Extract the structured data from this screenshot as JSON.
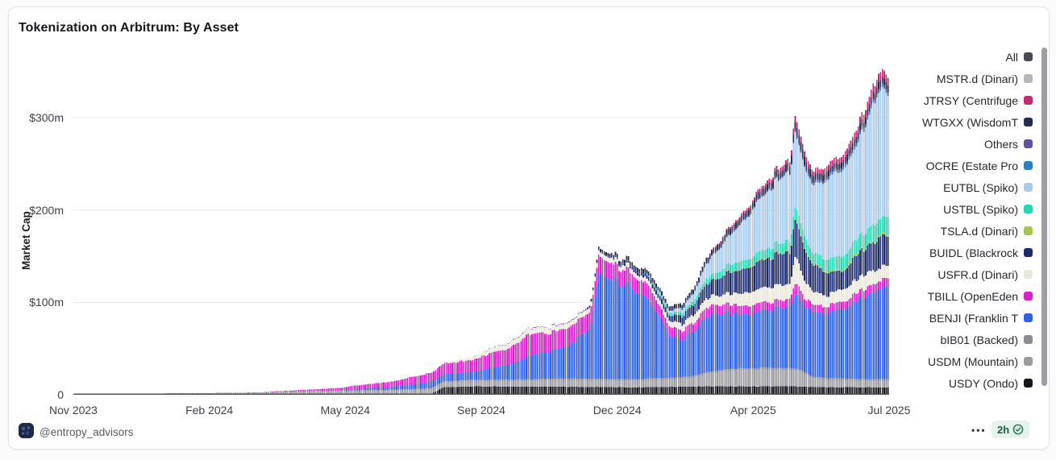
{
  "footer": {
    "handle": "@entropy_advisors",
    "menu_dots": "•••",
    "time": "2h"
  },
  "chart_data": {
    "type": "bar",
    "stacked": true,
    "title": "Tokenization on Arbitrum: By Asset",
    "ylabel": "Market Cap",
    "unit": "USD millions",
    "x_start": "Nov 2023",
    "x_end": "Jul 2025",
    "months_span": 20.5,
    "bars": 440,
    "grid": true,
    "legend_position": "right",
    "ylim": [
      0,
      378
    ],
    "y_ticks": [
      {
        "label": "$300m",
        "value": 300
      },
      {
        "label": "$200m",
        "value": 200
      },
      {
        "label": "$100m",
        "value": 100
      },
      {
        "label": "0",
        "value": 0
      }
    ],
    "x_ticks": [
      "Nov 2023",
      "Feb 2024",
      "May 2024",
      "Sep 2024",
      "Dec 2024",
      "Apr 2025",
      "Jul 2025"
    ],
    "legend": [
      {
        "label": "All",
        "color": "#4a4a54"
      },
      {
        "label": "MSTR.d (Dinari)",
        "color": "#b5b5ba"
      },
      {
        "label": "JTRSY (Centrifuge",
        "color": "#c42a72"
      },
      {
        "label": "WTGXX (WisdomT",
        "color": "#232c4e"
      },
      {
        "label": "Others",
        "color": "#6550a2"
      },
      {
        "label": "OCRE (Estate Pro",
        "color": "#2e7fc2"
      },
      {
        "label": "EUTBL (Spiko)",
        "color": "#a9ccee"
      },
      {
        "label": "USTBL (Spiko)",
        "color": "#2ed4b2"
      },
      {
        "label": "TSLA.d (Dinari)",
        "color": "#a3c64d"
      },
      {
        "label": "BUIDL (Blackrock",
        "color": "#1d2a6e"
      },
      {
        "label": "USFR.d (Dinari)",
        "color": "#e9e7dc"
      },
      {
        "label": "TBILL (OpenEden",
        "color": "#d722c8"
      },
      {
        "label": "BENJI (Franklin T",
        "color": "#2e5fe8"
      },
      {
        "label": "bIB01 (Backed)",
        "color": "#8b8b92"
      },
      {
        "label": "USDM (Mountain)",
        "color": "#9b9ba1"
      },
      {
        "label": "USDY (Ondo)",
        "color": "#14141c"
      }
    ],
    "series": [
      {
        "name": "USDY (Ondo)",
        "color": "#14141c",
        "noise": 0.04,
        "keyframes": [
          [
            0,
            0.4
          ],
          [
            8,
            0.6
          ],
          [
            9,
            0.8
          ],
          [
            9.3,
            8
          ],
          [
            10,
            9
          ],
          [
            13,
            8.5
          ],
          [
            14,
            8
          ],
          [
            16,
            9
          ],
          [
            18,
            9
          ],
          [
            19,
            8
          ],
          [
            20.5,
            8
          ]
        ]
      },
      {
        "name": "USDM (Mountain)",
        "color": "#9b9ba1",
        "noise": 0.05,
        "keyframes": [
          [
            0,
            0.5
          ],
          [
            3,
            0.8
          ],
          [
            4.5,
            1.5
          ],
          [
            6,
            3
          ],
          [
            7,
            3.5
          ],
          [
            8,
            4
          ],
          [
            9,
            5
          ],
          [
            10,
            6
          ],
          [
            11,
            6
          ],
          [
            12,
            7
          ],
          [
            13,
            7
          ],
          [
            14,
            7
          ],
          [
            15,
            8
          ],
          [
            15.5,
            9
          ],
          [
            16,
            14
          ],
          [
            16.5,
            17
          ],
          [
            17,
            18
          ],
          [
            18,
            18
          ],
          [
            18.3,
            16
          ],
          [
            18.6,
            9
          ],
          [
            19,
            8
          ],
          [
            20,
            7
          ],
          [
            20.5,
            7
          ]
        ]
      },
      {
        "name": "bIB01 (Backed)",
        "color": "#8b8b92",
        "noise": 0.05,
        "keyframes": [
          [
            0,
            0.2
          ],
          [
            5,
            0.5
          ],
          [
            8,
            1
          ],
          [
            10,
            1.5
          ],
          [
            14,
            2
          ],
          [
            20.5,
            2
          ]
        ]
      },
      {
        "name": "BENJI (Franklin T",
        "color": "#2e5fe8",
        "noise": 0.08,
        "keyframes": [
          [
            0,
            0
          ],
          [
            6.8,
            0
          ],
          [
            7,
            1
          ],
          [
            8,
            2.5
          ],
          [
            9,
            7
          ],
          [
            10,
            8
          ],
          [
            10.4,
            12
          ],
          [
            11,
            16
          ],
          [
            11.5,
            26
          ],
          [
            12,
            30
          ],
          [
            12.4,
            34
          ],
          [
            12.7,
            44
          ],
          [
            13,
            52
          ],
          [
            13.1,
            80
          ],
          [
            13.2,
            118
          ],
          [
            13.5,
            112
          ],
          [
            13.7,
            103
          ],
          [
            14,
            100
          ],
          [
            14.3,
            92
          ],
          [
            14.6,
            75
          ],
          [
            14.8,
            60
          ],
          [
            15,
            46
          ],
          [
            15.3,
            40
          ],
          [
            15.6,
            48
          ],
          [
            16,
            62
          ],
          [
            16.5,
            60
          ],
          [
            17,
            58
          ],
          [
            17.5,
            62
          ],
          [
            18,
            68
          ],
          [
            18.15,
            80
          ],
          [
            18.35,
            72
          ],
          [
            18.6,
            68
          ],
          [
            19,
            72
          ],
          [
            19.5,
            78
          ],
          [
            20,
            92
          ],
          [
            20.2,
            98
          ],
          [
            20.5,
            97
          ]
        ]
      },
      {
        "name": "TBILL (OpenEden",
        "color": "#d722c8",
        "noise": 0.12,
        "keyframes": [
          [
            0,
            0
          ],
          [
            4.8,
            0
          ],
          [
            5,
            0.5
          ],
          [
            6,
            1.5
          ],
          [
            7,
            3.5
          ],
          [
            8,
            6
          ],
          [
            9,
            10
          ],
          [
            9.5,
            12
          ],
          [
            10,
            13
          ],
          [
            10.5,
            16
          ],
          [
            11,
            18
          ],
          [
            11.5,
            24
          ],
          [
            12,
            20
          ],
          [
            13,
            18
          ],
          [
            13.5,
            17
          ],
          [
            14,
            16
          ],
          [
            14.5,
            14
          ],
          [
            15,
            10
          ],
          [
            16,
            10
          ],
          [
            17,
            9
          ],
          [
            18,
            8
          ],
          [
            18.15,
            12
          ],
          [
            18.35,
            9
          ],
          [
            19,
            8
          ],
          [
            20,
            9
          ],
          [
            20.5,
            10
          ]
        ]
      },
      {
        "name": "USFR.d (Dinari)",
        "color": "#ebe8da",
        "noise": 0.14,
        "keyframes": [
          [
            0,
            0
          ],
          [
            9,
            0
          ],
          [
            9.5,
            2
          ],
          [
            10,
            3
          ],
          [
            10.5,
            5
          ],
          [
            11,
            6
          ],
          [
            12,
            6
          ],
          [
            13,
            5
          ],
          [
            14,
            5
          ],
          [
            15,
            6
          ],
          [
            15.5,
            8
          ],
          [
            16,
            10
          ],
          [
            16.5,
            12
          ],
          [
            17,
            14
          ],
          [
            17.5,
            16
          ],
          [
            18,
            16
          ],
          [
            18.15,
            28
          ],
          [
            18.4,
            18
          ],
          [
            18.6,
            14
          ],
          [
            19,
            12
          ],
          [
            19.5,
            14
          ],
          [
            20,
            15
          ],
          [
            20.5,
            14
          ]
        ]
      },
      {
        "name": "BUIDL (Blackrock",
        "color": "#1d2a6e",
        "noise": 0.14,
        "keyframes": [
          [
            0,
            0
          ],
          [
            13.5,
            0
          ],
          [
            14,
            2
          ],
          [
            14.5,
            4
          ],
          [
            15,
            6
          ],
          [
            15.5,
            10
          ],
          [
            16,
            16
          ],
          [
            16.5,
            22
          ],
          [
            17,
            28
          ],
          [
            17.5,
            32
          ],
          [
            18,
            34
          ],
          [
            18.15,
            38
          ],
          [
            18.5,
            30
          ],
          [
            19,
            24
          ],
          [
            19.3,
            20
          ],
          [
            19.7,
            26
          ],
          [
            20,
            30
          ],
          [
            20.3,
            34
          ],
          [
            20.5,
            33
          ]
        ]
      },
      {
        "name": "TSLA.d (Dinari)",
        "color": "#a3c64d",
        "noise": 0.1,
        "keyframes": [
          [
            0,
            0
          ],
          [
            16,
            0
          ],
          [
            16.5,
            0.5
          ],
          [
            18,
            1
          ],
          [
            20,
            1.5
          ],
          [
            20.5,
            2
          ]
        ]
      },
      {
        "name": "USTBL (Spiko)",
        "color": "#2ed4b2",
        "noise": 0.12,
        "keyframes": [
          [
            0,
            0
          ],
          [
            14.3,
            0
          ],
          [
            14.6,
            2
          ],
          [
            15,
            3
          ],
          [
            15.5,
            4
          ],
          [
            16,
            6
          ],
          [
            16.5,
            8
          ],
          [
            17,
            9
          ],
          [
            17.5,
            10
          ],
          [
            18,
            11
          ],
          [
            18.15,
            13
          ],
          [
            18.6,
            12
          ],
          [
            19,
            13
          ],
          [
            19.5,
            15
          ],
          [
            20,
            17
          ],
          [
            20.5,
            19
          ]
        ]
      },
      {
        "name": "EUTBL (Spiko)",
        "color": "#a9ccee",
        "noise": 0.05,
        "keyframes": [
          [
            0,
            0
          ],
          [
            14.5,
            0
          ],
          [
            15,
            2
          ],
          [
            15.5,
            6
          ],
          [
            16,
            18
          ],
          [
            16.3,
            26
          ],
          [
            16.6,
            34
          ],
          [
            17,
            48
          ],
          [
            17.3,
            58
          ],
          [
            17.6,
            66
          ],
          [
            18,
            74
          ],
          [
            18.15,
            80
          ],
          [
            18.45,
            72
          ],
          [
            18.8,
            80
          ],
          [
            19,
            88
          ],
          [
            19.3,
            92
          ],
          [
            19.6,
            98
          ],
          [
            19.8,
            108
          ],
          [
            20,
            120
          ],
          [
            20.2,
            138
          ],
          [
            20.35,
            142
          ],
          [
            20.5,
            132
          ]
        ]
      },
      {
        "name": "OCRE (Estate Pro",
        "color": "#2e7fc2",
        "noise": 0.1,
        "keyframes": [
          [
            0,
            0
          ],
          [
            18,
            0
          ],
          [
            18.5,
            1
          ],
          [
            19.5,
            2
          ],
          [
            20.5,
            2
          ]
        ]
      },
      {
        "name": "Others",
        "color": "#6550a2",
        "noise": 0.1,
        "keyframes": [
          [
            0,
            0
          ],
          [
            10,
            0
          ],
          [
            11,
            0.5
          ],
          [
            13,
            1
          ],
          [
            15,
            1
          ],
          [
            17,
            1.5
          ],
          [
            20.5,
            2
          ]
        ]
      },
      {
        "name": "WTGXX (WisdomT",
        "color": "#232c4e",
        "noise": 0.2,
        "keyframes": [
          [
            0,
            0
          ],
          [
            12.8,
            0
          ],
          [
            13,
            2
          ],
          [
            13.5,
            4
          ],
          [
            15,
            4
          ],
          [
            16,
            5
          ],
          [
            17,
            6
          ],
          [
            18,
            7
          ],
          [
            18.15,
            9
          ],
          [
            19,
            6
          ],
          [
            20,
            7
          ],
          [
            20.5,
            7
          ]
        ]
      },
      {
        "name": "JTRSY (Centrifuge",
        "color": "#c42a72",
        "noise": 0.2,
        "keyframes": [
          [
            0,
            0
          ],
          [
            15.8,
            0
          ],
          [
            16,
            1
          ],
          [
            16.5,
            2
          ],
          [
            17,
            3
          ],
          [
            17.5,
            4
          ],
          [
            18,
            5
          ],
          [
            18.15,
            7
          ],
          [
            18.6,
            5
          ],
          [
            19,
            6
          ],
          [
            19.5,
            7
          ],
          [
            20,
            8
          ],
          [
            20.2,
            9
          ],
          [
            20.5,
            8
          ]
        ]
      },
      {
        "name": "MSTR.d (Dinari)",
        "color": "#b5b5ba",
        "noise": 0.1,
        "keyframes": [
          [
            0,
            0
          ],
          [
            19.5,
            0
          ],
          [
            20,
            0.5
          ],
          [
            20.5,
            1
          ]
        ]
      }
    ]
  }
}
